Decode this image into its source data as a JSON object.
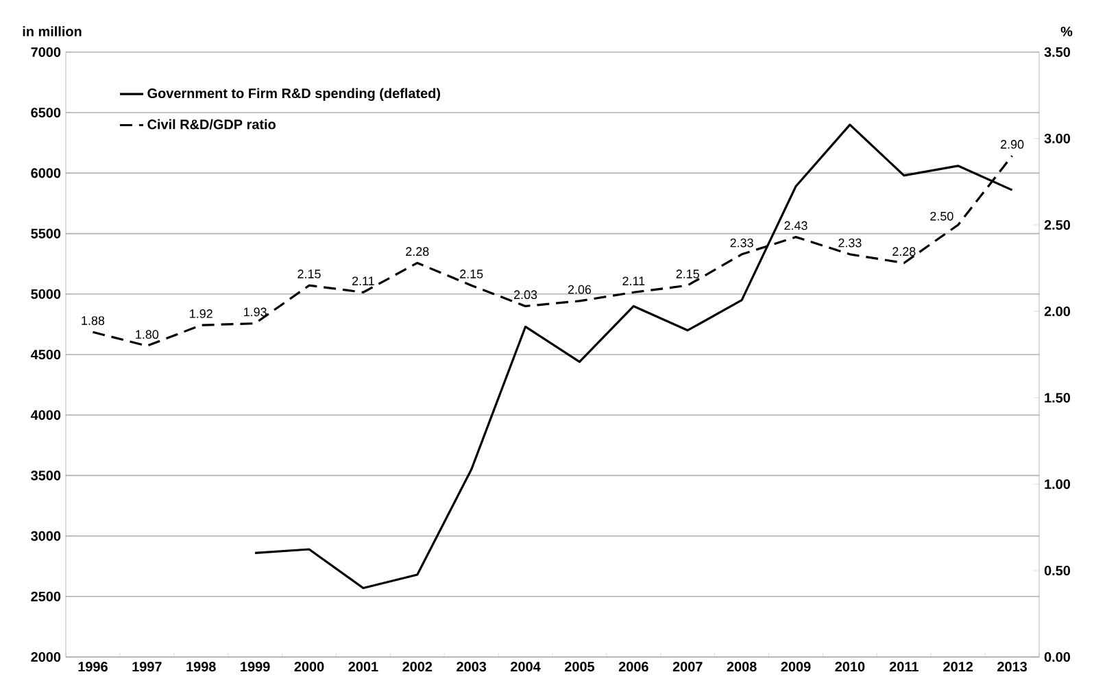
{
  "chart_data": {
    "type": "line",
    "ylabel": "in million",
    "y2label": "%",
    "categories": [
      "1996",
      "1997",
      "1998",
      "1999",
      "2000",
      "2001",
      "2002",
      "2003",
      "2004",
      "2005",
      "2006",
      "2007",
      "2008",
      "2009",
      "2010",
      "2011",
      "2012",
      "2013"
    ],
    "series": [
      {
        "name": "Government to Firm R&D spending (deflated)",
        "color": "#000000",
        "line_style": "solid",
        "values": [
          null,
          null,
          null,
          2860,
          2890,
          2570,
          2680,
          3550,
          4730,
          4440,
          4900,
          4700,
          4950,
          5890,
          6400,
          5980,
          6060,
          5860
        ]
      },
      {
        "name": "Civil R&D/GDP ratio",
        "color": "#000000",
        "line_style": "dashed",
        "axis": "y2",
        "values": [
          1.88,
          1.8,
          1.92,
          1.93,
          2.15,
          2.11,
          2.28,
          2.15,
          2.03,
          2.06,
          2.11,
          2.15,
          2.33,
          2.43,
          2.33,
          2.28,
          2.5,
          2.9
        ],
        "value_labels": [
          "1.88",
          "1.80",
          "1.92",
          "1.93",
          "2.15",
          "2.11",
          "2.28",
          "2.15",
          "2.03",
          "2.06",
          "2.11",
          "2.15",
          "2.33",
          "2.43",
          "2.33",
          "2.28",
          "2.50",
          "2.90"
        ]
      }
    ],
    "ylim": [
      2000,
      7000
    ],
    "yticks": [
      2000,
      2500,
      3000,
      3500,
      4000,
      4500,
      5000,
      5500,
      6000,
      6500,
      7000
    ],
    "y2lim": [
      0,
      3.5
    ],
    "y2ticks": [
      {
        "value": 0,
        "label": "0.00"
      },
      {
        "value": 0.5,
        "label": "0.50"
      },
      {
        "value": 1,
        "label": "1.00"
      },
      {
        "value": 1.5,
        "label": "1.50"
      },
      {
        "value": 2,
        "label": "2.00"
      },
      {
        "value": 2.5,
        "label": "2.50"
      },
      {
        "value": 3,
        "label": "3.00"
      },
      {
        "value": 3.5,
        "label": "3.50"
      }
    ],
    "grid": "y",
    "legend": "top left",
    "marker": "none"
  }
}
